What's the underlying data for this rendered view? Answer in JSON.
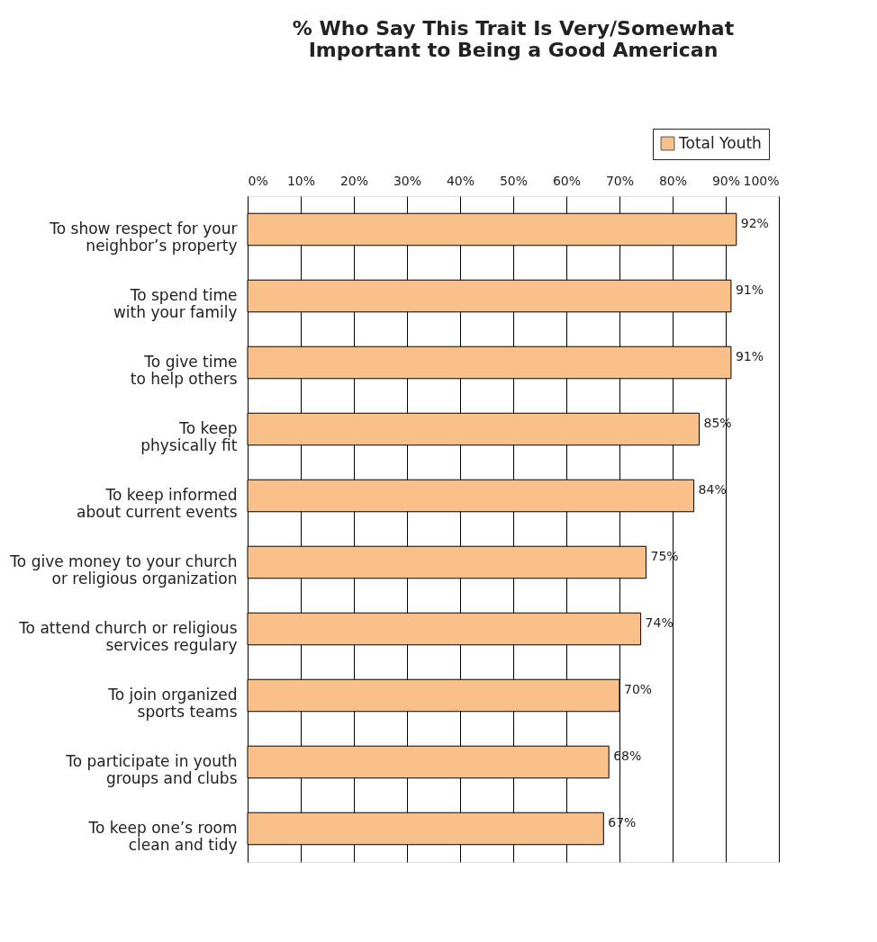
{
  "chart_data": {
    "type": "bar",
    "orientation": "horizontal",
    "title": [
      "% Who Say This Trait Is Very/Somewhat",
      "Important to Being a Good American"
    ],
    "categories": [
      "To show respect for your\nneighbor’s property",
      "To spend time\nwith your family",
      "To give time\nto help others",
      "To keep\nphysically fit",
      "To keep informed\nabout current events",
      "To give money to your church\nor religious organization",
      "To attend church or religious\nservices regulary",
      "To join organized\nsports teams",
      "To participate in youth\ngroups and clubs",
      "To keep one’s room\nclean and tidy"
    ],
    "series": [
      {
        "name": "Total Youth",
        "color": "#f9c08a",
        "values": [
          92,
          91,
          91,
          85,
          84,
          75,
          74,
          70,
          68,
          67
        ],
        "value_labels": [
          "92%",
          "91%",
          "91%",
          "85%",
          "84%",
          "75%",
          "74%",
          "70%",
          "68%",
          "67%"
        ]
      }
    ],
    "xlim": [
      0,
      100
    ],
    "xticks": [
      {
        "value": 0,
        "label": "0%"
      },
      {
        "value": 10,
        "label": "10%"
      },
      {
        "value": 20,
        "label": "20%"
      },
      {
        "value": 30,
        "label": "30%"
      },
      {
        "value": 40,
        "label": "40%"
      },
      {
        "value": 50,
        "label": "50%"
      },
      {
        "value": 60,
        "label": "60%"
      },
      {
        "value": 70,
        "label": "70%"
      },
      {
        "value": 80,
        "label": "80%"
      },
      {
        "value": 90,
        "label": "90%"
      },
      {
        "value": 100,
        "label": "100%"
      }
    ],
    "grid": "x",
    "legend": "top right"
  }
}
